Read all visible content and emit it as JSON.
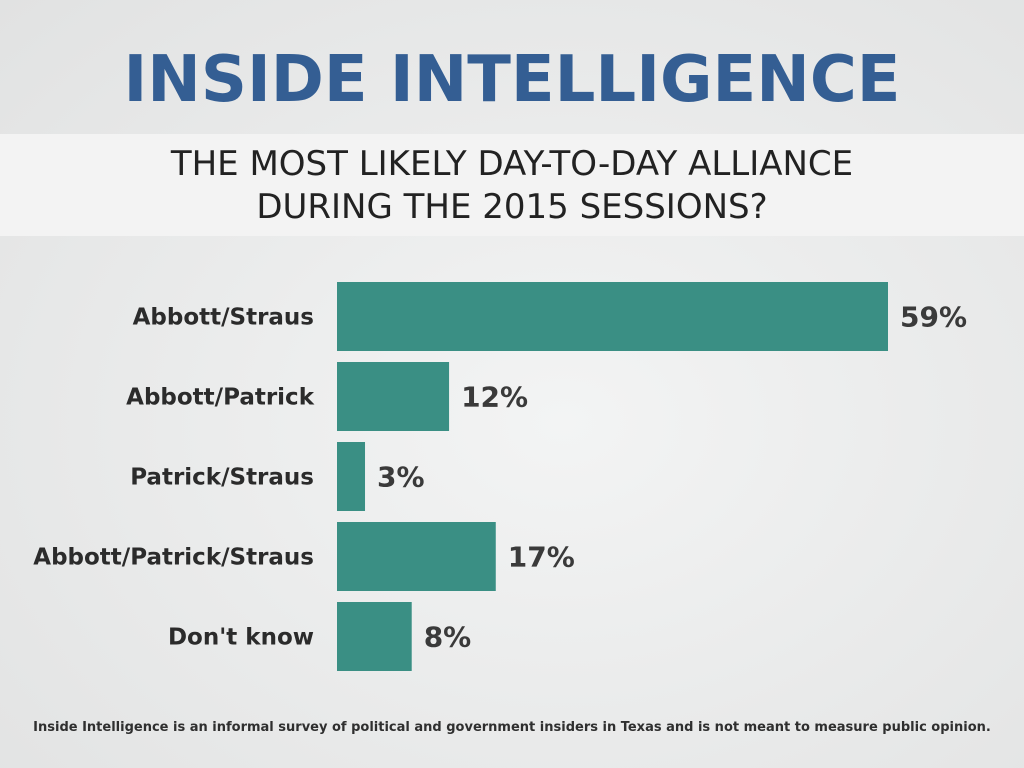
{
  "header": {
    "title": "INSIDE INTELLIGENCE",
    "question_line1": "THE MOST LIKELY DAY-TO-DAY ALLIANCE",
    "question_line2": "DURING THE 2015 SESSIONS?"
  },
  "footnote": "Inside Intelligence is an informal survey of political and government insiders in Texas and is not meant to measure public opinion.",
  "colors": {
    "title": "#345e93",
    "bar": "#3a8f84"
  },
  "chart_data": {
    "type": "bar",
    "orientation": "horizontal",
    "categories": [
      "Abbott/Straus",
      "Abbott/Patrick",
      "Patrick/Straus",
      "Abbott/Patrick/Straus",
      "Don't know"
    ],
    "values": [
      59,
      12,
      3,
      17,
      8
    ],
    "value_labels": [
      "59%",
      "12%",
      "3%",
      "17%",
      "8%"
    ],
    "title": "INSIDE INTELLIGENCE",
    "subtitle": "THE MOST LIKELY DAY-TO-DAY ALLIANCE DURING THE 2015 SESSIONS?",
    "xlim": [
      0,
      59
    ],
    "grid": false,
    "legend": "none"
  }
}
